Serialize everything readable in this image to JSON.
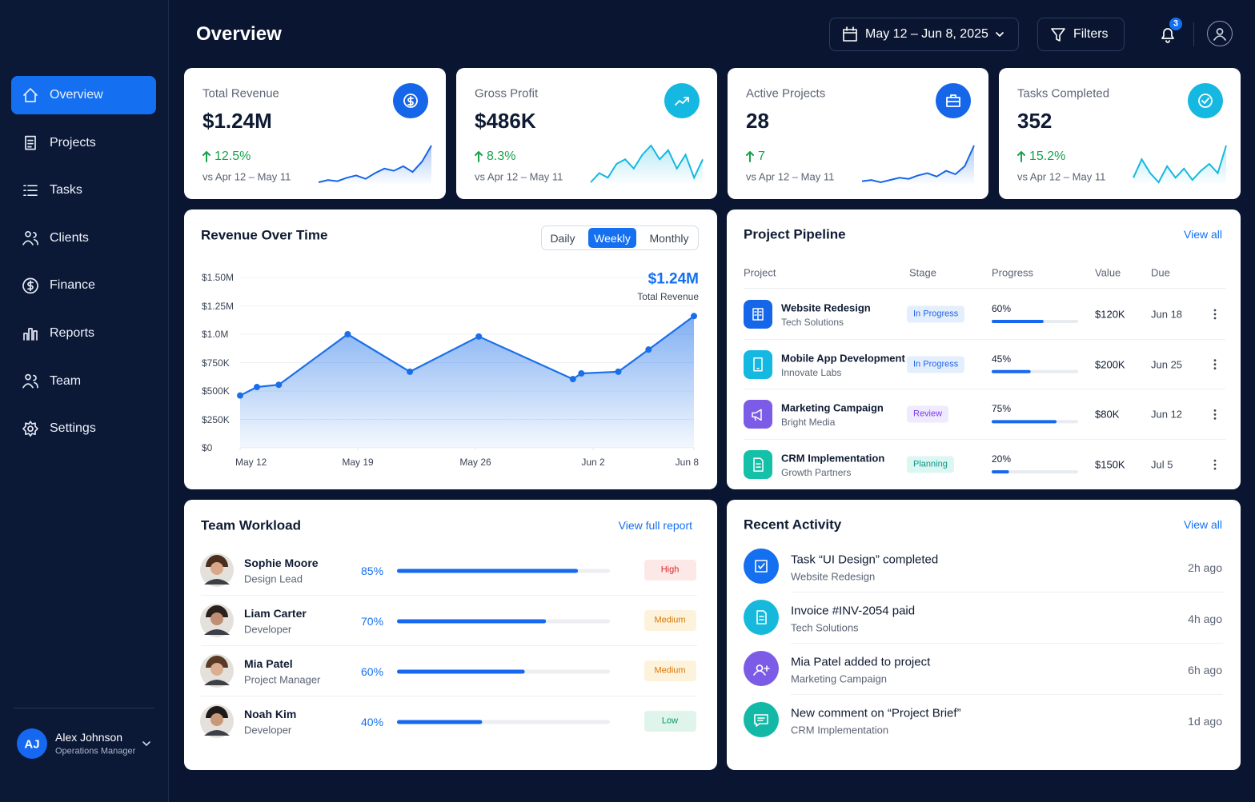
{
  "sidebar": {
    "nav": [
      "Overview",
      "Projects",
      "Tasks",
      "Clients",
      "Finance",
      "Reports",
      "Team",
      "Settings"
    ],
    "user": {
      "initials": "AJ",
      "name": "Alex Johnson",
      "role": "Operations Manager"
    }
  },
  "header": {
    "title": "Overview",
    "date_range": "May 12 – Jun 8, 2025",
    "filters": "Filters",
    "notifications": 3
  },
  "kpis": [
    {
      "label": "Total Revenue",
      "value": "$1.24M",
      "change": "12.5%",
      "compare": "vs Apr 12 – May 11",
      "color": "#1566e8",
      "trend": [
        8,
        10,
        9,
        12,
        14,
        11,
        16,
        20,
        18,
        22,
        17,
        26,
        40
      ]
    },
    {
      "label": "Gross Profit",
      "value": "$486K",
      "change": "8.3%",
      "compare": "vs Apr 12 – May 11",
      "color": "#15b8e0",
      "trend": [
        10,
        12,
        11,
        14,
        15,
        13,
        16,
        18,
        15,
        17,
        13,
        16,
        11,
        15
      ]
    },
    {
      "label": "Active Projects",
      "value": 28,
      "change": 7,
      "compare": "vs Apr 12 – May 11",
      "color": "#1566e8",
      "trend": [
        9,
        10,
        8,
        10,
        12,
        11,
        14,
        16,
        13,
        18,
        15,
        22,
        40
      ]
    },
    {
      "label": "Tasks Completed",
      "value": 352,
      "change": "15.2%",
      "compare": "vs Apr 12 – May 11",
      "color": "#15b8e0",
      "trend": [
        12,
        20,
        14,
        10,
        17,
        12,
        16,
        11,
        15,
        18,
        14,
        26
      ]
    }
  ],
  "chart_data": {
    "type": "line",
    "title": "Revenue Over Time",
    "tabs": [
      "Daily",
      "Weekly",
      "Monthly"
    ],
    "x": [
      0,
      1,
      2.3,
      6.4,
      10.1,
      14.2,
      19.8,
      20.3,
      22.5,
      24.3,
      27
    ],
    "values": [
      460000,
      535000,
      555000,
      1000000,
      670000,
      980000,
      605000,
      655000,
      670000,
      865000,
      1160000
    ],
    "xlim": [
      0,
      27
    ],
    "xticks": [
      {
        "value": 0,
        "label": "May 12"
      },
      {
        "value": 7,
        "label": "May 19"
      },
      {
        "value": 14,
        "label": "May 26"
      },
      {
        "value": 21,
        "label": "Jun 2"
      },
      {
        "value": 27,
        "label": "Jun 8"
      }
    ],
    "ylim": [
      0,
      1500000
    ],
    "yticks": [
      {
        "value": 0,
        "label": "$0"
      },
      {
        "value": 250000,
        "label": "$250K"
      },
      {
        "value": 500000,
        "label": "$500K"
      },
      {
        "value": 750000,
        "label": "$750K"
      },
      {
        "value": 1000000,
        "label": "$1.0M"
      },
      {
        "value": 1250000,
        "label": "$1.25M"
      },
      {
        "value": 1500000,
        "label": "$1.50M"
      }
    ],
    "color": "#1a6fe8",
    "grid": true,
    "annotation": {
      "value": "$1.24M",
      "label": "Total Revenue"
    }
  },
  "pipeline": {
    "title": "Project Pipeline",
    "link": "View all",
    "columns": [
      "Project",
      "Stage",
      "Progress",
      "Value",
      "Due"
    ],
    "xlim": [
      0,
      100
    ],
    "rows": [
      {
        "project": "Website Redesign",
        "client": "Tech Solutions",
        "stage": "In Progress",
        "progress": 60,
        "progress_label": "60%",
        "value": "$120K",
        "due": "Jun 18",
        "color": "#1566e8"
      },
      {
        "project": "Mobile App Development",
        "client": "Innovate Labs",
        "stage": "In Progress",
        "progress": 45,
        "progress_label": "45%",
        "value": "$200K",
        "due": "Jun 25",
        "color": "#15b8e0"
      },
      {
        "project": "Marketing Campaign",
        "client": "Bright Media",
        "stage": "Review",
        "progress": 75,
        "progress_label": "75%",
        "value": "$80K",
        "due": "Jun 12",
        "color": "#7c5ce6"
      },
      {
        "project": "CRM Implementation",
        "client": "Growth Partners",
        "stage": "Planning",
        "progress": 20,
        "progress_label": "20%",
        "value": "$150K",
        "due": "Jul 5",
        "color": "#14c1a8"
      }
    ]
  },
  "team": {
    "title": "Team Workload",
    "link": "View full report",
    "xlim": [
      0,
      100
    ],
    "members": [
      {
        "name": "Sophie Moore",
        "role": "Design Lead",
        "load": 85,
        "load_label": "85%",
        "level": "High"
      },
      {
        "name": "Liam Carter",
        "role": "Developer",
        "load": 70,
        "load_label": "70%",
        "level": "Medium"
      },
      {
        "name": "Mia Patel",
        "role": "Project Manager",
        "load": 60,
        "load_label": "60%",
        "level": "Medium"
      },
      {
        "name": "Noah Kim",
        "role": "Developer",
        "load": 40,
        "load_label": "40%",
        "level": "Low"
      }
    ]
  },
  "activity": {
    "title": "Recent Activity",
    "link": "View all",
    "items": [
      {
        "title": "Task “UI Design” completed",
        "subtitle": "Website Redesign",
        "time": "2h ago",
        "color": "#1470f0"
      },
      {
        "title": "Invoice #INV-2054 paid",
        "subtitle": "Tech Solutions",
        "time": "4h ago",
        "color": "#16b9dc"
      },
      {
        "title": "Mia Patel added to project",
        "subtitle": "Marketing Campaign",
        "time": "6h ago",
        "color": "#7c5ce6"
      },
      {
        "title": "New comment on “Project Brief”",
        "subtitle": "CRM Implementation",
        "time": "1d ago",
        "color": "#14b8a6"
      }
    ]
  }
}
